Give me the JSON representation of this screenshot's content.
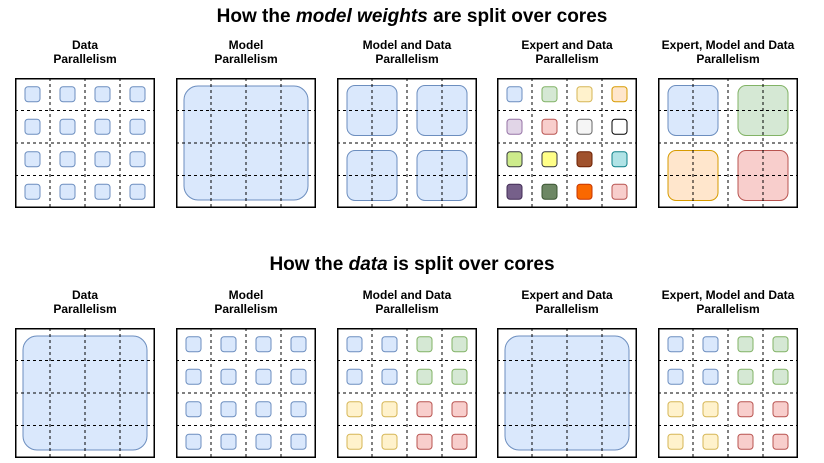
{
  "titles": {
    "top": {
      "pre": "How the ",
      "em": "model weights",
      "post": " are split over cores"
    },
    "bottom": {
      "pre": "How the ",
      "em": "data",
      "post": " is split over cores"
    }
  },
  "colors": {
    "blue": [
      "#dae8fc",
      "#6c8ebf"
    ],
    "green": [
      "#d5e8d4",
      "#82b366"
    ],
    "yellow": [
      "#fff2cc",
      "#d6b656"
    ],
    "orange": [
      "#ffe6cc",
      "#d79b00"
    ],
    "purple": [
      "#e1d5e7",
      "#9673a6"
    ],
    "red": [
      "#f8cecc",
      "#b85450"
    ],
    "gray": [
      "#f5f5f5",
      "#666666"
    ],
    "white": [
      "#ffffff",
      "#000000"
    ],
    "lime": [
      "#cdeb8b",
      "#36393d"
    ],
    "brightyellow": [
      "#ffff88",
      "#36393d"
    ],
    "brown": [
      "#a0522d",
      "#6d1f00"
    ],
    "cyan": [
      "#b0e3e6",
      "#0e8088"
    ],
    "darkpurple": [
      "#76608a",
      "#432d57"
    ],
    "darkgreen": [
      "#6d8764",
      "#3a5431"
    ],
    "brightorange": [
      "#fa6800",
      "#c73500"
    ],
    "pink": [
      "#f8cecc",
      "#b85450"
    ]
  },
  "rows": [
    {
      "name": "weights",
      "panels": [
        {
          "label1": "Data",
          "label2": "Parallelism",
          "layout": "small",
          "colors": [
            "blue",
            "blue",
            "blue",
            "blue",
            "blue",
            "blue",
            "blue",
            "blue",
            "blue",
            "blue",
            "blue",
            "blue",
            "blue",
            "blue",
            "blue",
            "blue"
          ]
        },
        {
          "label1": "Model",
          "label2": "Parallelism",
          "layout": "full",
          "colors": [
            "blue"
          ]
        },
        {
          "label1": "Model and Data",
          "label2": "Parallelism",
          "layout": "quad",
          "colors": [
            "blue",
            "blue",
            "blue",
            "blue"
          ]
        },
        {
          "label1": "Expert and Data",
          "label2": "Parallelism",
          "layout": "small",
          "colors": [
            "blue",
            "green",
            "yellow",
            "orange",
            "purple",
            "red",
            "gray",
            "white",
            "lime",
            "brightyellow",
            "brown",
            "cyan",
            "darkpurple",
            "darkgreen",
            "brightorange",
            "pink"
          ]
        },
        {
          "label1": "Expert, Model and Data",
          "label2": "Parallelism",
          "layout": "quad",
          "colors": [
            "blue",
            "green",
            "orange",
            "red"
          ]
        }
      ]
    },
    {
      "name": "data",
      "panels": [
        {
          "label1": "Data",
          "label2": "Parallelism",
          "layout": "full",
          "colors": [
            "blue"
          ]
        },
        {
          "label1": "Model",
          "label2": "Parallelism",
          "layout": "small",
          "colors": [
            "blue",
            "blue",
            "blue",
            "blue",
            "blue",
            "blue",
            "blue",
            "blue",
            "blue",
            "blue",
            "blue",
            "blue",
            "blue",
            "blue",
            "blue",
            "blue"
          ]
        },
        {
          "label1": "Model and Data",
          "label2": "Parallelism",
          "layout": "small",
          "colors": [
            "blue",
            "blue",
            "green",
            "green",
            "blue",
            "blue",
            "green",
            "green",
            "yellow",
            "yellow",
            "red",
            "red",
            "yellow",
            "yellow",
            "red",
            "red"
          ]
        },
        {
          "label1": "Expert and Data",
          "label2": "Parallelism",
          "layout": "full",
          "colors": [
            "blue"
          ]
        },
        {
          "label1": "Expert, Model and Data",
          "label2": "Parallelism",
          "layout": "small",
          "colors": [
            "blue",
            "blue",
            "green",
            "green",
            "blue",
            "blue",
            "green",
            "green",
            "yellow",
            "yellow",
            "red",
            "red",
            "yellow",
            "yellow",
            "red",
            "red"
          ]
        }
      ]
    }
  ]
}
